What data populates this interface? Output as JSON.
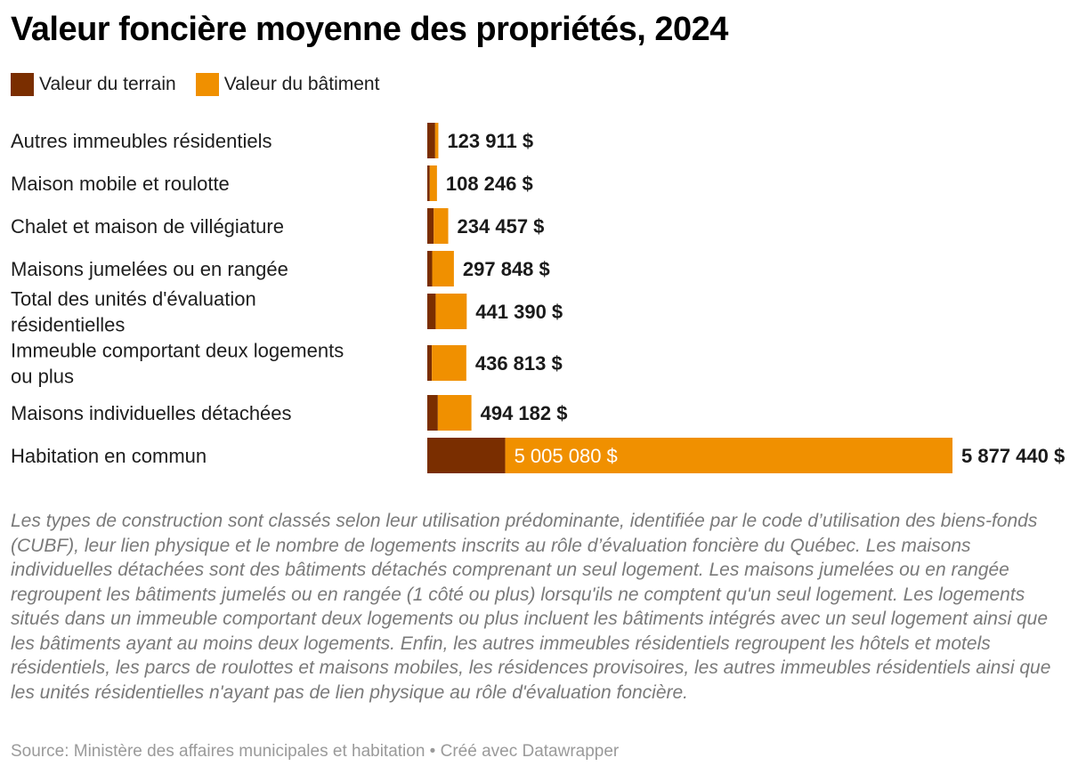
{
  "title": "Valeur foncière moyenne des propriétés, 2024",
  "legend": {
    "land": "Valeur du terrain",
    "building": "Valeur du bâtiment"
  },
  "colors": {
    "land": "#7a2e00",
    "building": "#f09000",
    "total_label": "#1a1a1a",
    "inner_label": "#ffffff"
  },
  "chart_data": {
    "type": "bar",
    "orientation": "horizontal",
    "stacked": true,
    "title": "Valeur foncière moyenne des propriétés, 2024",
    "xlim": [
      0,
      5877440
    ],
    "grid": false,
    "legend_position": "top-left",
    "categories": [
      "Autres immeubles résidentiels",
      "Maison mobile et roulotte",
      "Chalet et maison de villégiature",
      "Maisons jumelées ou en rangée",
      "Total des unités d'évaluation résidentielles",
      "Immeuble comportant deux logements ou plus",
      "Maisons individuelles détachées",
      "Habitation en commun"
    ],
    "series": [
      {
        "name": "Valeur du terrain",
        "values": [
          88000,
          28000,
          72000,
          55000,
          94000,
          51000,
          118000,
          872360
        ]
      },
      {
        "name": "Valeur du bâtiment",
        "values": [
          35911,
          80246,
          162457,
          242848,
          347390,
          385813,
          376182,
          5005080
        ]
      }
    ],
    "totals": [
      123911,
      108246,
      234457,
      297848,
      441390,
      436813,
      494182,
      5877440
    ],
    "total_labels": [
      "123 911 $",
      "108 246 $",
      "234 457 $",
      "297 848 $",
      "441 390 $",
      "436 813 $",
      "494 182 $",
      "5 877 440 $"
    ],
    "inner_labels": [
      "",
      "",
      "",
      "",
      "",
      "",
      "",
      "5 005 080 $"
    ]
  },
  "notes": "Les types de construction sont classés selon leur utilisation prédominante, identifiée par le code d’utilisation des biens-fonds (CUBF), leur lien physique et le nombre de logements inscrits au rôle d’évaluation foncière du Québec. Les maisons individuelles détachées sont des bâtiments détachés comprenant un seul logement. Les maisons jumelées ou en rangée regroupent les bâtiments jumelés ou en rangée (1 côté ou plus) lorsqu'ils ne comptent qu'un seul logement. Les logements situés dans un immeuble comportant deux logements ou plus incluent les bâtiments intégrés avec un seul logement ainsi que les bâtiments ayant au moins deux logements. Enfin, les autres immeubles résidentiels regroupent les hôtels et motels résidentiels, les parcs de roulottes et maisons mobiles, les résidences provisoires, les autres immeubles résidentiels ainsi que les unités résidentielles n'ayant pas de lien physique au rôle d'évaluation foncière.",
  "source": "Source: Ministère des affaires municipales et habitation • Créé avec Datawrapper"
}
